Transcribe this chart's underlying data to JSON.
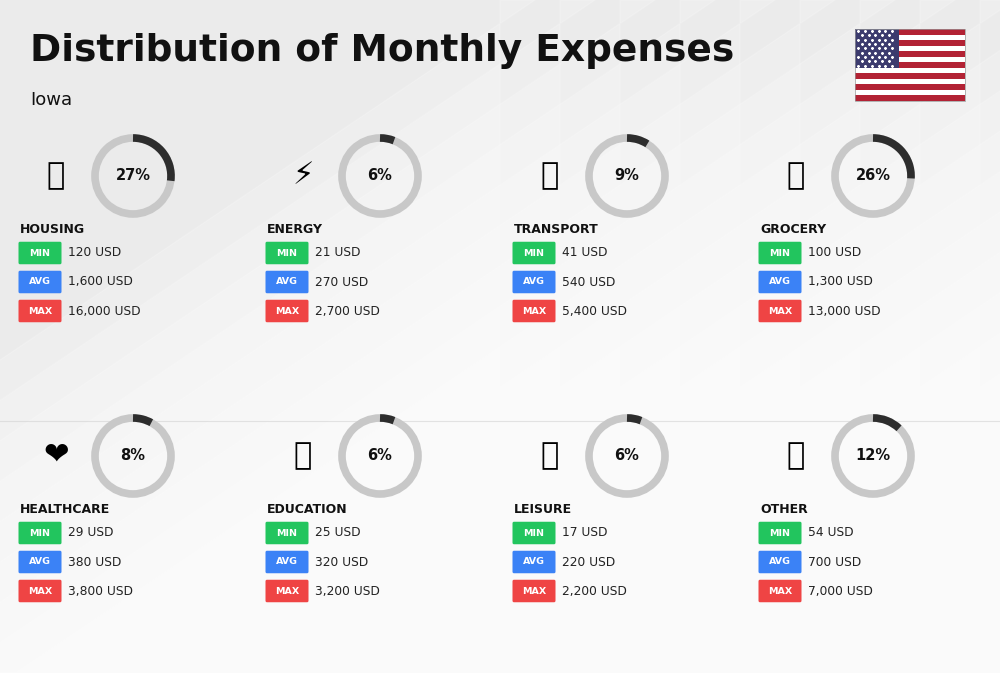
{
  "title": "Distribution of Monthly Expenses",
  "subtitle": "Iowa",
  "background_color": "#ebebeb",
  "categories": [
    {
      "name": "HOUSING",
      "percent": 27,
      "min_val": "120 USD",
      "avg_val": "1,600 USD",
      "max_val": "16,000 USD",
      "icon": "🏙",
      "row": 0,
      "col": 0
    },
    {
      "name": "ENERGY",
      "percent": 6,
      "min_val": "21 USD",
      "avg_val": "270 USD",
      "max_val": "2,700 USD",
      "icon": "⚡",
      "row": 0,
      "col": 1
    },
    {
      "name": "TRANSPORT",
      "percent": 9,
      "min_val": "41 USD",
      "avg_val": "540 USD",
      "max_val": "5,400 USD",
      "icon": "🚌",
      "row": 0,
      "col": 2
    },
    {
      "name": "GROCERY",
      "percent": 26,
      "min_val": "100 USD",
      "avg_val": "1,300 USD",
      "max_val": "13,000 USD",
      "icon": "🛒",
      "row": 0,
      "col": 3
    },
    {
      "name": "HEALTHCARE",
      "percent": 8,
      "min_val": "29 USD",
      "avg_val": "380 USD",
      "max_val": "3,800 USD",
      "icon": "❤",
      "row": 1,
      "col": 0
    },
    {
      "name": "EDUCATION",
      "percent": 6,
      "min_val": "25 USD",
      "avg_val": "320 USD",
      "max_val": "3,200 USD",
      "icon": "🎓",
      "row": 1,
      "col": 1
    },
    {
      "name": "LEISURE",
      "percent": 6,
      "min_val": "17 USD",
      "avg_val": "220 USD",
      "max_val": "2,200 USD",
      "icon": "🛍",
      "row": 1,
      "col": 2
    },
    {
      "name": "OTHER",
      "percent": 12,
      "min_val": "54 USD",
      "avg_val": "700 USD",
      "max_val": "7,000 USD",
      "icon": "👜",
      "row": 1,
      "col": 3
    }
  ],
  "min_color": "#22c55e",
  "avg_color": "#3b82f6",
  "max_color": "#ef4444",
  "label_color": "#ffffff",
  "arc_dark_color": "#2d2d2d",
  "arc_light_color": "#c8c8c8",
  "text_color": "#111111",
  "value_text_color": "#222222",
  "stripe_color": "#ffffff",
  "flag_colors": [
    "#B22234",
    "#ffffff",
    "#3C3B6E"
  ]
}
